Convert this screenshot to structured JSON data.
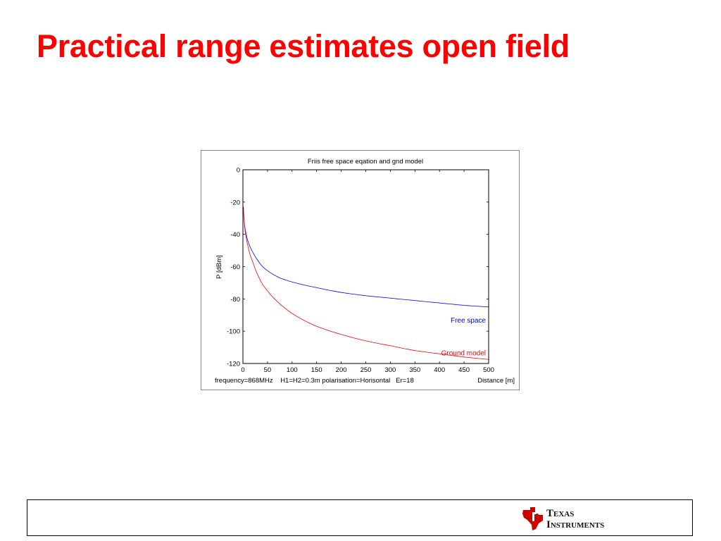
{
  "slide": {
    "title": "Practical range estimates open field"
  },
  "chart_data": {
    "type": "line",
    "title": "Friis free space eqation and gnd model",
    "xlabel": "Distance [m]",
    "ylabel": "P [dBm]",
    "annotation": "frequency=868MHz    H1=H2=0.3m polarisation=Horisontal   Er=18",
    "xlim": [
      0,
      500
    ],
    "ylim": [
      -120,
      0
    ],
    "xticks": [
      0,
      50,
      100,
      150,
      200,
      250,
      300,
      350,
      400,
      450,
      500
    ],
    "yticks": [
      0,
      -20,
      -40,
      -60,
      -80,
      -100,
      -120
    ],
    "grid": false,
    "series": [
      {
        "name": "Free space",
        "color": "#0000ff",
        "x": [
          1,
          2,
          3,
          5,
          7,
          10,
          15,
          20,
          30,
          40,
          50,
          75,
          100,
          150,
          200,
          250,
          300,
          350,
          400,
          450,
          500
        ],
        "y": [
          -23,
          -29,
          -33,
          -37.5,
          -40.5,
          -44,
          -48,
          -51,
          -56,
          -60,
          -62.5,
          -67,
          -69.5,
          -73,
          -76,
          -78,
          -79.5,
          -81,
          -82.5,
          -84,
          -85
        ]
      },
      {
        "name": "Ground model",
        "color": "#ff0000",
        "x": [
          1,
          2,
          3,
          5,
          7,
          10,
          15,
          20,
          30,
          40,
          50,
          75,
          100,
          150,
          200,
          250,
          300,
          350,
          400,
          450,
          500
        ],
        "y": [
          -24,
          -30,
          -34,
          -39,
          -42.5,
          -47,
          -53,
          -57,
          -65,
          -71,
          -75,
          -83,
          -89,
          -97,
          -102,
          -106,
          -109,
          -112,
          -114,
          -116,
          -117.5
        ]
      }
    ]
  },
  "footer": {
    "logo": {
      "icon": "texas-instruments-logo-icon",
      "line1_initial": "T",
      "line1_rest": "EXAS",
      "line2_initial": "I",
      "line2_rest": "NSTRUMENTS",
      "color": "#cc0000"
    }
  }
}
